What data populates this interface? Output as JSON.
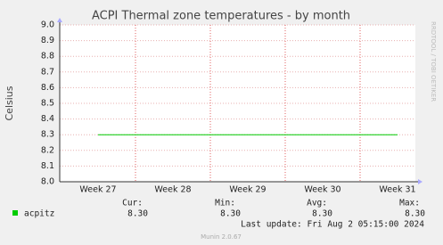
{
  "chart_data": {
    "type": "line",
    "title": "ACPI Thermal zone temperatures - by month",
    "y_label": "Celsius",
    "categories": [
      "Week 27",
      "Week 28",
      "Week 29",
      "Week 30",
      "Week 31"
    ],
    "series": [
      {
        "name": "acpitz",
        "color": "#00cc00",
        "values": [
          8.3,
          8.3,
          8.3,
          8.3,
          8.3
        ]
      }
    ],
    "ylim": [
      8,
      9
    ],
    "yticks": [
      {
        "value": 8,
        "label": "8.0"
      },
      8.1,
      8.2,
      8.3,
      8.4,
      8.5,
      8.6,
      8.7,
      8.8,
      8.9,
      {
        "value": 9,
        "label": "9.0"
      }
    ],
    "grid": true,
    "summary": {
      "headers": [
        "Cur:",
        "Min:",
        "Avg:",
        "Max:"
      ],
      "rows": [
        {
          "name": "acpitz",
          "values": [
            "8.30",
            "8.30",
            "8.30",
            "8.30"
          ]
        }
      ]
    },
    "last_update": "Last update: Fri Aug  2 05:15:00 2024",
    "watermark": "RRDTOOL / TOBI OETIKER",
    "footer": "Munin 2.0.67"
  }
}
